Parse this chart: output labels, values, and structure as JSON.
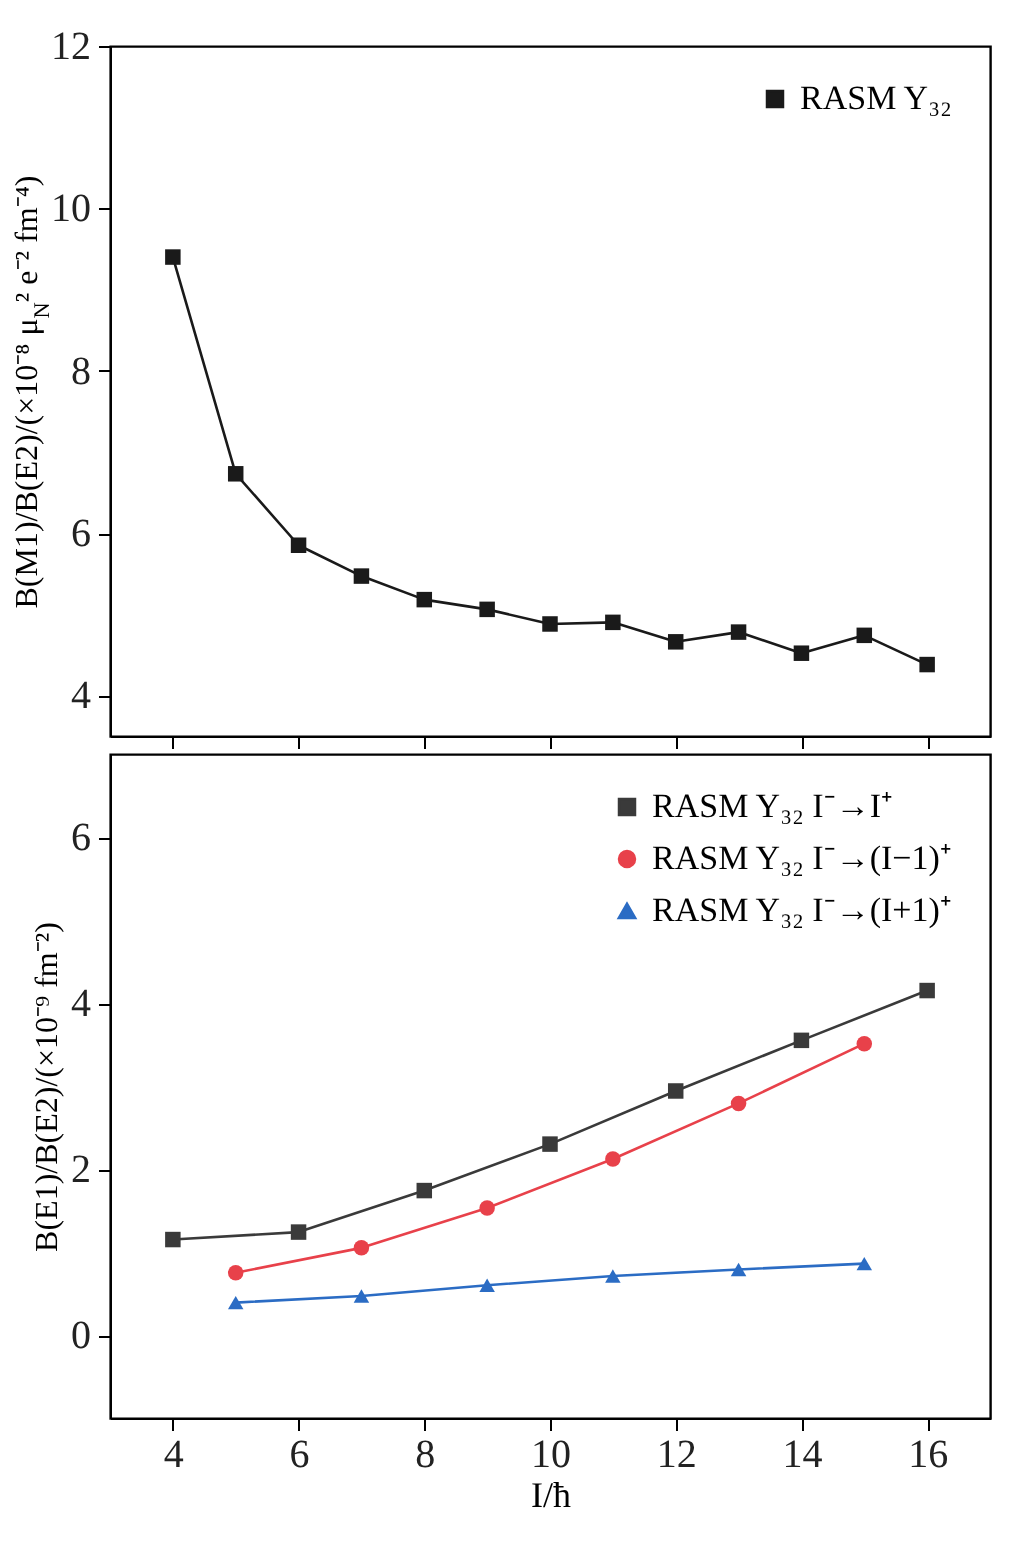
{
  "chart_data": [
    {
      "type": "line",
      "ylabel": "B(M1)/B(E2)/(×10⁻⁸ μ$_{N}$² e⁻² fm⁻⁴)",
      "x": [
        4,
        5,
        6,
        7,
        8,
        9,
        10,
        11,
        12,
        13,
        14,
        15,
        16
      ],
      "series": [
        {
          "name": "RASM Y₃₂",
          "color": "#1a1a1a",
          "values": [
            9.4,
            6.73,
            5.85,
            5.47,
            5.18,
            5.06,
            4.88,
            4.9,
            4.66,
            4.78,
            4.52,
            4.74,
            4.38
          ]
        }
      ],
      "marker": "square",
      "xlim": [
        3,
        17
      ],
      "xticks": [
        4,
        6,
        8,
        10,
        12,
        14,
        16
      ],
      "ylim": [
        3.5,
        12
      ],
      "yticks": [
        4,
        6,
        8,
        10,
        12
      ],
      "tick_labels": "y",
      "legend": "top right"
    },
    {
      "type": "line",
      "xlabel": "I/ħ",
      "ylabel": "B(E1)/B(E2)/(×10⁻⁹ fm⁻²)",
      "series": [
        {
          "name": "RASM Y₃₂ I⁻→I⁺",
          "color": "#3a3a3a",
          "marker": "square",
          "x": [
            4,
            6,
            8,
            10,
            12,
            14,
            16
          ],
          "values": [
            1.15,
            1.24,
            1.74,
            2.3,
            2.94,
            3.55,
            4.15
          ]
        },
        {
          "name": "RASM Y₃₂ I⁻→(I−1)⁺",
          "color": "#e8414a",
          "marker": "circle",
          "x": [
            5,
            7,
            9,
            11,
            13,
            15
          ],
          "values": [
            0.75,
            1.05,
            1.53,
            2.12,
            2.79,
            3.51
          ]
        },
        {
          "name": "RASM Y₃₂ I⁻→(I+1)⁺",
          "color": "#2b6cc4",
          "marker": "triangle",
          "x": [
            5,
            7,
            9,
            11,
            13,
            15
          ],
          "values": [
            0.39,
            0.47,
            0.6,
            0.71,
            0.79,
            0.86
          ]
        }
      ],
      "xlim": [
        3,
        17
      ],
      "xticks": [
        4,
        6,
        8,
        10,
        12,
        14,
        16
      ],
      "ylim": [
        -1,
        7
      ],
      "yticks": [
        0,
        2,
        4,
        6
      ],
      "legend": "top right"
    }
  ]
}
